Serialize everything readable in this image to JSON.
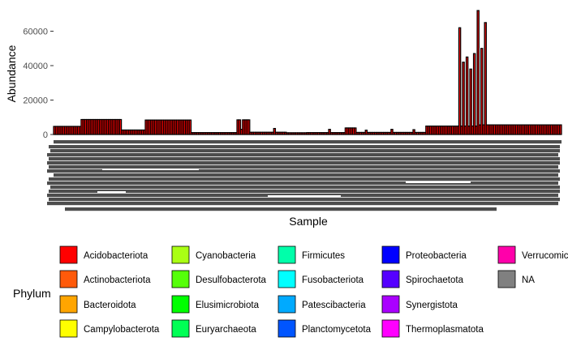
{
  "chart_data": {
    "type": "bar",
    "stacked": true,
    "title": "",
    "xlabel": "Sample",
    "ylabel": "Abundance",
    "y_ticks": [
      0,
      20000,
      40000,
      60000
    ],
    "y_tick_labels": [
      "0",
      "20000",
      "40000",
      "60000"
    ],
    "ylim": [
      0,
      72000
    ],
    "x_tick_labels_legible": false,
    "grid": false,
    "legend_position": "bottom",
    "bar_outline_color": "#000000",
    "segments": [
      {
        "count": 15,
        "value": 4700
      },
      {
        "count": 22,
        "value": 8700
      },
      {
        "count": 13,
        "value": 2600
      },
      {
        "count": 25,
        "value": 8400
      },
      {
        "count": 25,
        "value": 1100
      },
      {
        "count": 7,
        "value": 8500
      },
      {
        "count": 20,
        "value": 1300
      },
      {
        "count": 11,
        "value": 1000
      },
      {
        "count": 21,
        "value": 1100
      },
      {
        "count": 6,
        "value": 3800
      },
      {
        "count": 38,
        "value": 1200
      },
      {
        "count": 28,
        "value": 4900
      },
      {
        "count": 46,
        "value": 5600
      }
    ],
    "spikes": [
      {
        "index": 221,
        "value": 62000
      },
      {
        "index": 223,
        "value": 42000
      },
      {
        "index": 225,
        "value": 45000
      },
      {
        "index": 227,
        "value": 38000
      },
      {
        "index": 229,
        "value": 47000
      },
      {
        "index": 231,
        "value": 72000
      },
      {
        "index": 233,
        "value": 50000
      },
      {
        "index": 235,
        "value": 65000
      },
      {
        "index": 184,
        "value": 3000
      },
      {
        "index": 196,
        "value": 2800
      },
      {
        "index": 120,
        "value": 3500
      },
      {
        "index": 150,
        "value": 3000
      },
      {
        "index": 170,
        "value": 2500
      },
      {
        "index": 102,
        "value": 3000
      }
    ],
    "legend_title": "Phylum",
    "legend": [
      {
        "name": "Acidobacteriota",
        "color": "#FF0000"
      },
      {
        "name": "Actinobacteriota",
        "color": "#FF5A0A"
      },
      {
        "name": "Bacteroidota",
        "color": "#FFA500"
      },
      {
        "name": "Campylobacterota",
        "color": "#FFFF00"
      },
      {
        "name": "Cyanobacteria",
        "color": "#AAFF14"
      },
      {
        "name": "Desulfobacterota",
        "color": "#55FF0A"
      },
      {
        "name": "Elusimicrobiota",
        "color": "#00FF00"
      },
      {
        "name": "Euryarchaeota",
        "color": "#00FF55"
      },
      {
        "name": "Firmicutes",
        "color": "#00FFAA"
      },
      {
        "name": "Fusobacteriota",
        "color": "#00FFFF"
      },
      {
        "name": "Patescibacteria",
        "color": "#00AAFF"
      },
      {
        "name": "Planctomycetota",
        "color": "#0055FF"
      },
      {
        "name": "Proteobacteria",
        "color": "#0000FF"
      },
      {
        "name": "Spirochaetota",
        "color": "#5500FF"
      },
      {
        "name": "Synergistota",
        "color": "#AA00FF"
      },
      {
        "name": "Thermoplasmatota",
        "color": "#FF00FF"
      },
      {
        "name": "Verrucomicrobiota",
        "color": "#FF00AA"
      },
      {
        "name": "NA",
        "color": "#808080"
      }
    ]
  }
}
